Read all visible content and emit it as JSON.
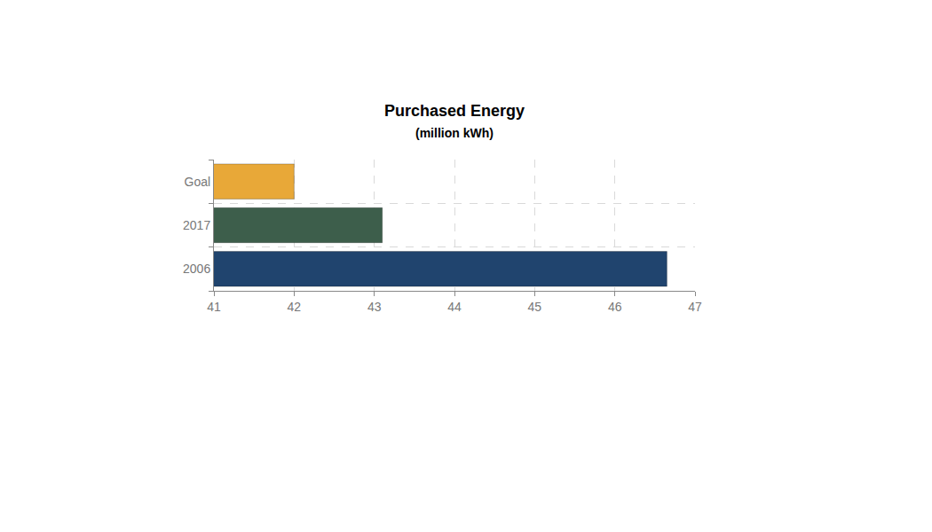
{
  "chart_data": {
    "type": "bar",
    "orientation": "horizontal",
    "title": "Purchased Energy",
    "subtitle": "(million kWh)",
    "categories": [
      "2006",
      "2017",
      "Goal"
    ],
    "values": [
      46.65,
      43.1,
      42.0
    ],
    "colors": [
      "#20446e",
      "#3d5e4b",
      "#e8a838"
    ],
    "xlim": [
      41,
      47
    ],
    "xticks": [
      41,
      42,
      43,
      44,
      45,
      46,
      47
    ],
    "grid": true
  }
}
